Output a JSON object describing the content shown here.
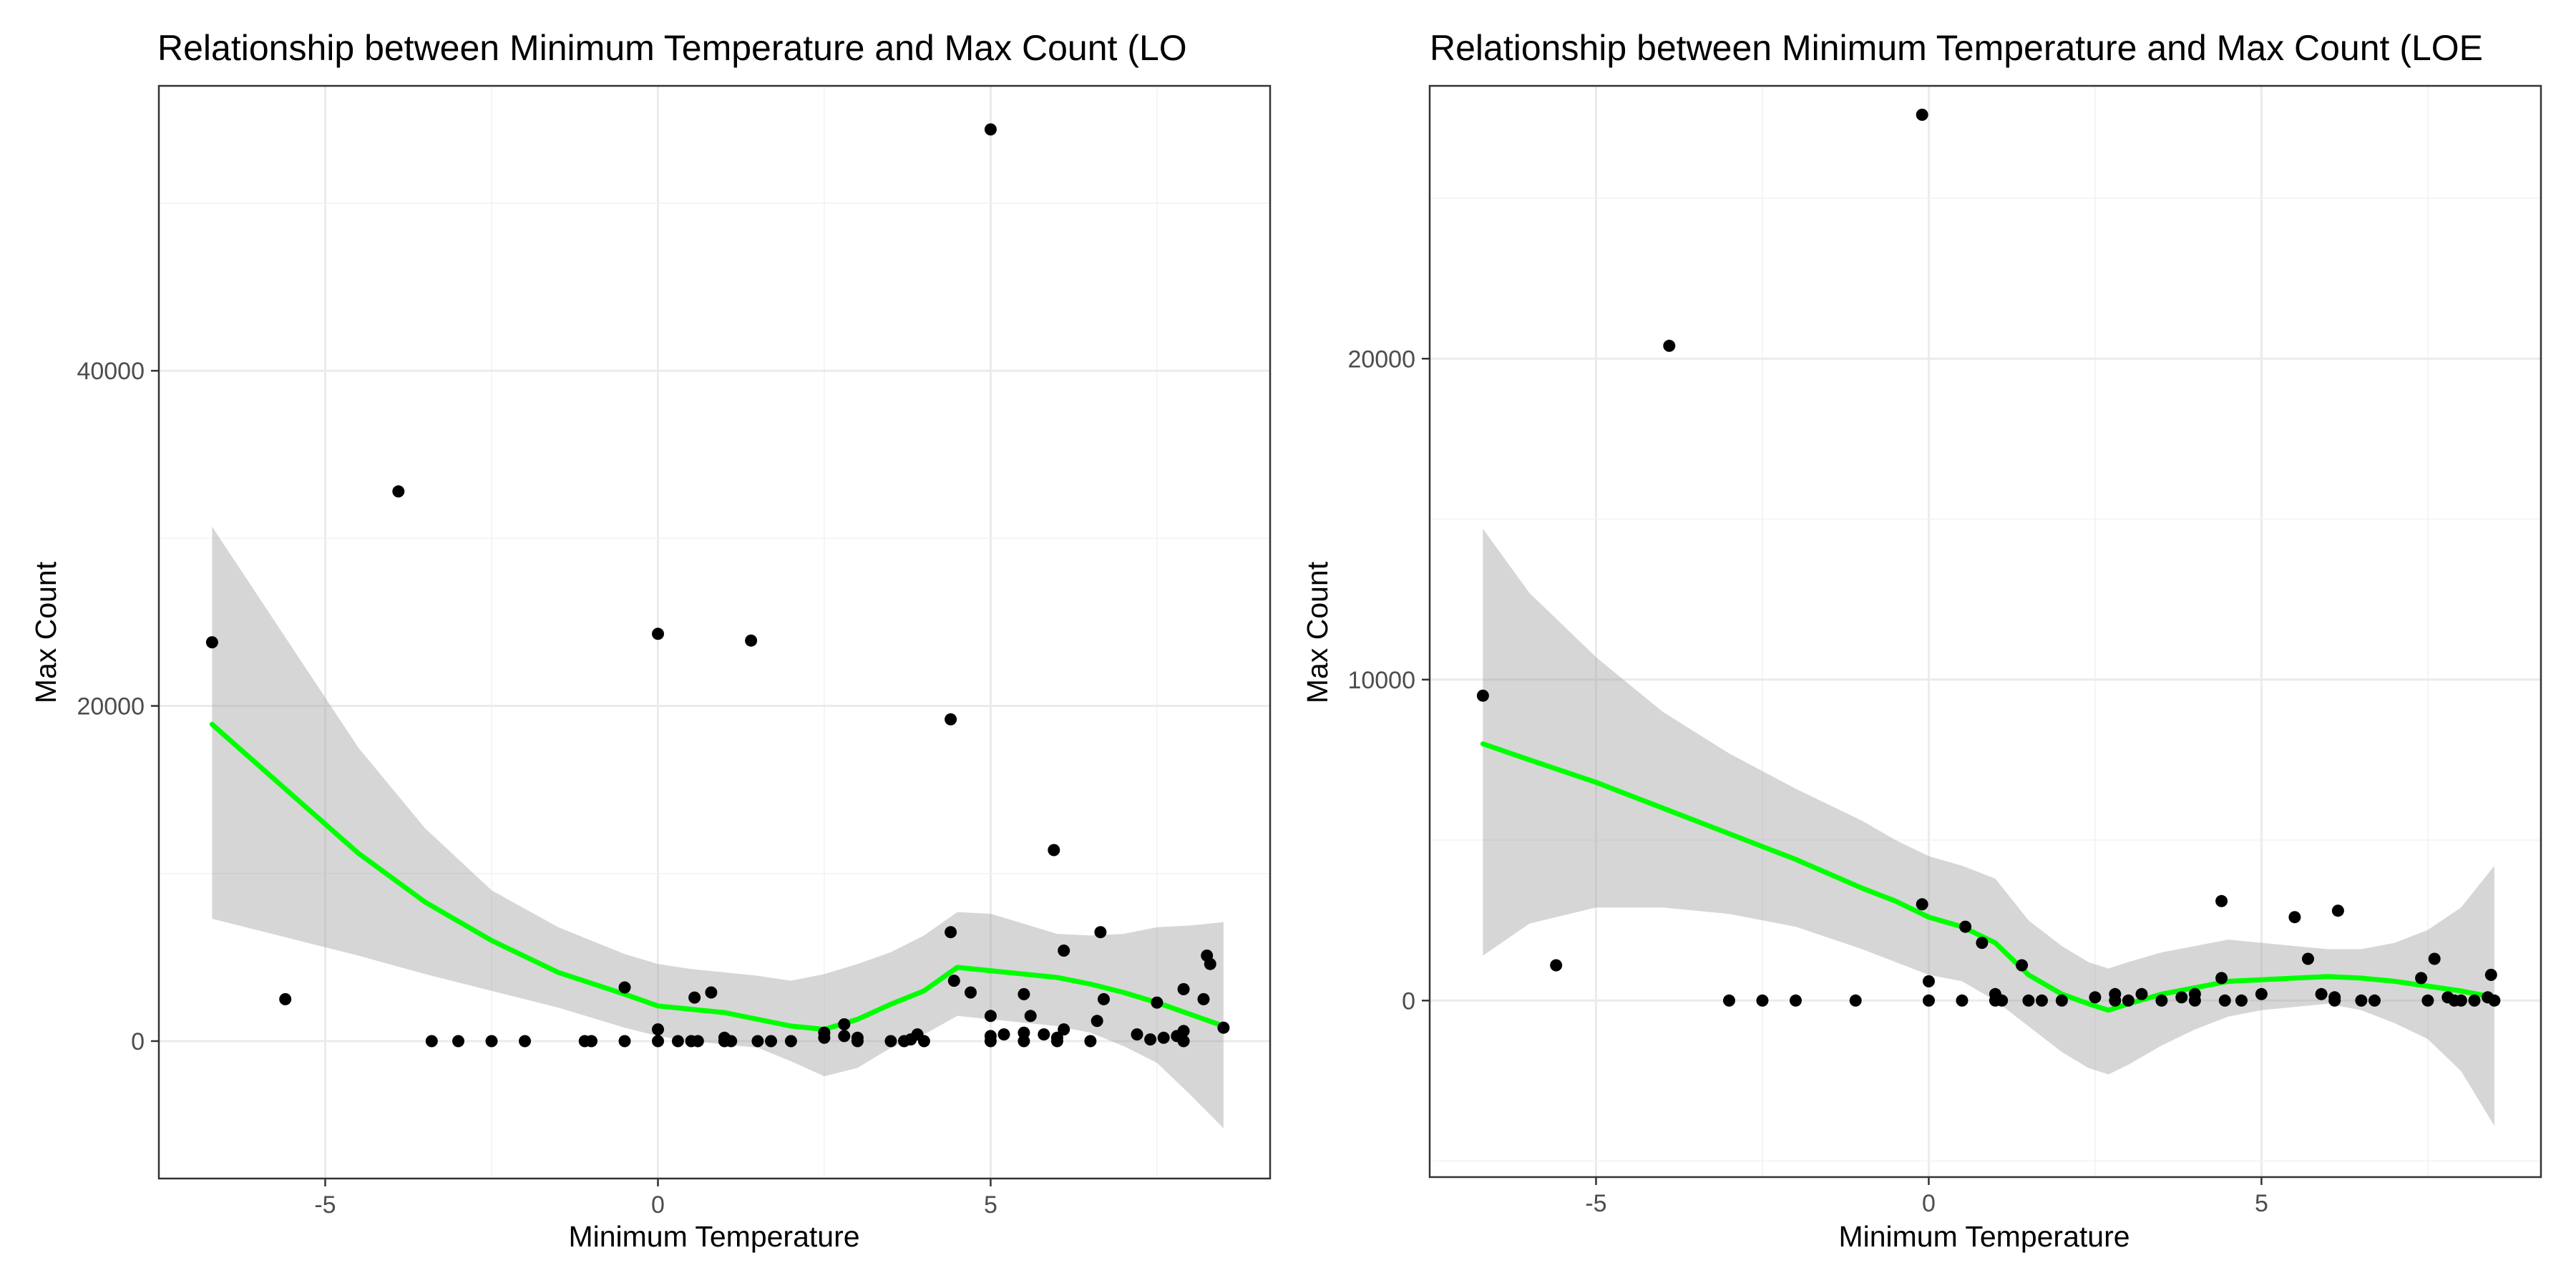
{
  "colors": {
    "smooth_line": "#00ff00",
    "ribbon": "#999999",
    "points": "#000000"
  },
  "chart_data": [
    {
      "type": "scatter",
      "title": "Relationship between Minimum Temperature and Max Count (LO",
      "xlabel": "Minimum Temperature",
      "ylabel": "Max Count",
      "xlim": [
        -7.5,
        9.2
      ],
      "ylim": [
        -8200,
        57000
      ],
      "xticks": [
        -5,
        0,
        5
      ],
      "xtick_labels": [
        "-5",
        "0",
        "5"
      ],
      "yticks": [
        0,
        20000,
        40000
      ],
      "ytick_labels": [
        "0",
        "20000",
        "40000"
      ],
      "grid": true,
      "points": [
        [
          -6.7,
          23800
        ],
        [
          -5.6,
          2500
        ],
        [
          -3.9,
          32800
        ],
        [
          -3.4,
          0
        ],
        [
          -3.0,
          0
        ],
        [
          -2.5,
          0
        ],
        [
          -2.0,
          0
        ],
        [
          -1.1,
          0
        ],
        [
          -1.0,
          0
        ],
        [
          -0.5,
          0
        ],
        [
          -0.5,
          3200
        ],
        [
          0.0,
          24300
        ],
        [
          0.0,
          0
        ],
        [
          0.0,
          700
        ],
        [
          0.3,
          0
        ],
        [
          0.5,
          0
        ],
        [
          0.55,
          2600
        ],
        [
          0.6,
          0
        ],
        [
          0.8,
          2900
        ],
        [
          1.0,
          0
        ],
        [
          1.0,
          200
        ],
        [
          1.1,
          0
        ],
        [
          1.4,
          23900
        ],
        [
          1.5,
          0
        ],
        [
          1.7,
          0
        ],
        [
          2.0,
          0
        ],
        [
          2.5,
          200
        ],
        [
          2.5,
          500
        ],
        [
          2.8,
          300
        ],
        [
          2.8,
          1000
        ],
        [
          3.0,
          0
        ],
        [
          3.0,
          200
        ],
        [
          3.5,
          0
        ],
        [
          3.7,
          0
        ],
        [
          3.8,
          100
        ],
        [
          3.9,
          400
        ],
        [
          4.0,
          0
        ],
        [
          4.4,
          19200
        ],
        [
          4.4,
          6500
        ],
        [
          4.45,
          3600
        ],
        [
          4.7,
          2900
        ],
        [
          5.0,
          54400
        ],
        [
          5.0,
          1500
        ],
        [
          5.0,
          300
        ],
        [
          5.0,
          0
        ],
        [
          5.2,
          400
        ],
        [
          5.5,
          0
        ],
        [
          5.5,
          500
        ],
        [
          5.5,
          2800
        ],
        [
          5.6,
          1500
        ],
        [
          5.8,
          400
        ],
        [
          5.95,
          11400
        ],
        [
          6.0,
          0
        ],
        [
          6.0,
          200
        ],
        [
          6.1,
          700
        ],
        [
          6.1,
          5400
        ],
        [
          6.5,
          0
        ],
        [
          6.6,
          1200
        ],
        [
          6.65,
          6500
        ],
        [
          6.7,
          2500
        ],
        [
          7.2,
          400
        ],
        [
          7.4,
          100
        ],
        [
          7.5,
          2300
        ],
        [
          7.6,
          200
        ],
        [
          7.8,
          300
        ],
        [
          7.9,
          0
        ],
        [
          7.9,
          600
        ],
        [
          7.9,
          3100
        ],
        [
          8.2,
          2500
        ],
        [
          8.25,
          5100
        ],
        [
          8.3,
          4600
        ],
        [
          8.5,
          800
        ]
      ],
      "smooth": {
        "x": [
          -6.7,
          -5.5,
          -4.5,
          -3.5,
          -2.5,
          -1.5,
          -0.5,
          0.0,
          0.5,
          1.0,
          1.5,
          2.0,
          2.5,
          3.0,
          3.5,
          4.0,
          4.5,
          5.0,
          5.5,
          6.0,
          6.5,
          7.0,
          7.5,
          8.0,
          8.5
        ],
        "y": [
          18900,
          14700,
          11200,
          8300,
          6000,
          4100,
          2800,
          2100,
          1900,
          1700,
          1300,
          900,
          700,
          1300,
          2200,
          3000,
          4400,
          4200,
          4000,
          3800,
          3400,
          2900,
          2300,
          1600,
          900
        ],
        "lower": [
          7300,
          6100,
          5100,
          4000,
          3000,
          2000,
          800,
          300,
          0,
          -200,
          -400,
          -1200,
          -2100,
          -1600,
          -400,
          400,
          1500,
          1300,
          1100,
          900,
          500,
          -300,
          -1300,
          -3200,
          -5200
        ],
        "upper": [
          30700,
          23500,
          17500,
          12700,
          9000,
          6800,
          5200,
          4600,
          4300,
          4100,
          3900,
          3600,
          4000,
          4600,
          5300,
          6300,
          7700,
          7600,
          7000,
          6400,
          6300,
          6400,
          6800,
          6900,
          7100
        ]
      }
    },
    {
      "type": "scatter",
      "title": "Relationship between Minimum Temperature and Max Count (LOE",
      "xlabel": "Minimum Temperature",
      "ylabel": "Max Count",
      "xlim": [
        -7.5,
        9.2
      ],
      "ylim": [
        -5500,
        28500
      ],
      "xticks": [
        -5,
        0,
        5
      ],
      "xtick_labels": [
        "-5",
        "0",
        "5"
      ],
      "yticks": [
        0,
        10000,
        20000
      ],
      "ytick_labels": [
        "0",
        "10000",
        "20000"
      ],
      "grid": true,
      "points": [
        [
          -6.7,
          9500
        ],
        [
          -5.6,
          1100
        ],
        [
          -3.9,
          20400
        ],
        [
          -3.0,
          0
        ],
        [
          -2.5,
          0
        ],
        [
          -2.0,
          0
        ],
        [
          -1.1,
          0
        ],
        [
          -0.1,
          27600
        ],
        [
          0.0,
          0
        ],
        [
          0.0,
          600
        ],
        [
          -0.1,
          3000
        ],
        [
          0.5,
          0
        ],
        [
          0.55,
          2300
        ],
        [
          0.8,
          1800
        ],
        [
          1.0,
          0
        ],
        [
          1.0,
          200
        ],
        [
          1.1,
          0
        ],
        [
          1.4,
          1100
        ],
        [
          1.5,
          0
        ],
        [
          1.7,
          0
        ],
        [
          2.0,
          0
        ],
        [
          2.5,
          100
        ],
        [
          2.8,
          0
        ],
        [
          2.8,
          200
        ],
        [
          3.0,
          0
        ],
        [
          3.2,
          200
        ],
        [
          3.5,
          0
        ],
        [
          3.8,
          100
        ],
        [
          4.0,
          0
        ],
        [
          4.0,
          200
        ],
        [
          4.4,
          3100
        ],
        [
          4.4,
          700
        ],
        [
          4.45,
          0
        ],
        [
          4.7,
          0
        ],
        [
          5.0,
          200
        ],
        [
          5.5,
          2600
        ],
        [
          5.7,
          1300
        ],
        [
          5.9,
          200
        ],
        [
          6.1,
          0
        ],
        [
          6.1,
          100
        ],
        [
          6.15,
          2800
        ],
        [
          6.5,
          0
        ],
        [
          6.7,
          0
        ],
        [
          7.4,
          700
        ],
        [
          7.5,
          0
        ],
        [
          7.6,
          1300
        ],
        [
          7.8,
          100
        ],
        [
          7.9,
          0
        ],
        [
          8.0,
          0
        ],
        [
          8.2,
          0
        ],
        [
          8.4,
          100
        ],
        [
          8.45,
          800
        ],
        [
          8.5,
          0
        ]
      ],
      "smooth": {
        "x": [
          -6.7,
          -6.0,
          -5.0,
          -4.0,
          -3.0,
          -2.0,
          -1.0,
          -0.5,
          0.0,
          0.5,
          1.0,
          1.5,
          2.0,
          2.4,
          2.7,
          3.0,
          3.5,
          4.0,
          4.5,
          5.0,
          5.5,
          6.0,
          6.5,
          7.0,
          7.5,
          8.0,
          8.5
        ],
        "y": [
          8000,
          7500,
          6800,
          6000,
          5200,
          4400,
          3500,
          3100,
          2600,
          2300,
          1800,
          800,
          200,
          -100,
          -300,
          -100,
          200,
          400,
          600,
          650,
          700,
          750,
          700,
          600,
          450,
          300,
          100
        ],
        "lower": [
          1400,
          2400,
          2900,
          2900,
          2700,
          2300,
          1600,
          1200,
          800,
          600,
          0,
          -800,
          -1600,
          -2100,
          -2300,
          -2000,
          -1400,
          -900,
          -500,
          -300,
          -200,
          -100,
          -300,
          -700,
          -1200,
          -2200,
          -3900
        ],
        "upper": [
          14700,
          12700,
          10700,
          9000,
          7700,
          6600,
          5600,
          5000,
          4500,
          4200,
          3800,
          2500,
          1700,
          1200,
          1000,
          1200,
          1500,
          1700,
          1900,
          1800,
          1700,
          1600,
          1600,
          1800,
          2200,
          2900,
          4200
        ]
      }
    }
  ]
}
